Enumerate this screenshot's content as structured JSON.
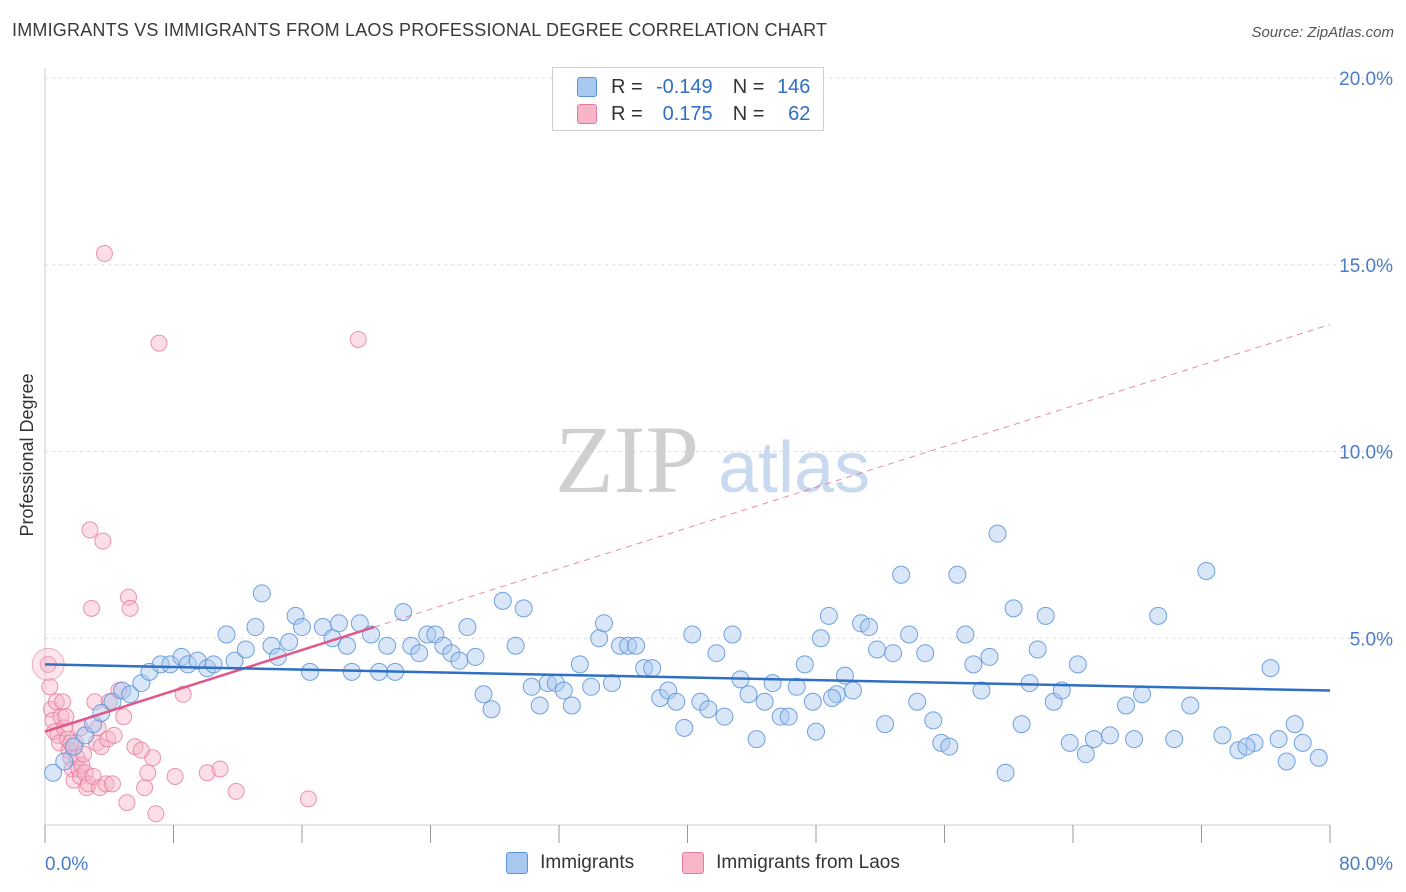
{
  "title": "IMMIGRANTS VS IMMIGRANTS FROM LAOS PROFESSIONAL DEGREE CORRELATION CHART",
  "source": "Source: ZipAtlas.com",
  "watermark": {
    "zip": "ZIP",
    "atlas": "atlas"
  },
  "legend_top": {
    "rows": [
      {
        "r_label": "R =",
        "r_value": "-0.149",
        "n_label": "N =",
        "n_value": "146",
        "color": "#a9c8f0"
      },
      {
        "r_label": "R =",
        "r_value": "0.175",
        "n_label": "N =",
        "n_value": "62",
        "color": "#f7b6c8"
      }
    ]
  },
  "legend_bottom": [
    {
      "label": "Immigrants",
      "color": "#a9c8f0"
    },
    {
      "label": "Immigrants from Laos",
      "color": "#f7b6c8"
    }
  ],
  "colors": {
    "blue_fill": "#a9c8f0",
    "blue_stroke": "#5b93d8",
    "blue_line": "#2f6fc4",
    "pink_fill": "#f7b6c8",
    "pink_stroke": "#e57aa0",
    "pink_line": "#e0588a",
    "axis_text": "#4a7cc8",
    "grid": "#dddddd"
  },
  "chart_data": {
    "type": "scatter",
    "title": "IMMIGRANTS VS IMMIGRANTS FROM LAOS PROFESSIONAL DEGREE CORRELATION CHART",
    "xlabel": "",
    "ylabel": "Professional Degree",
    "xlim": [
      0,
      80
    ],
    "ylim": [
      0,
      20
    ],
    "x_tick_labels": [
      "0.0%",
      "80.0%"
    ],
    "y_ticks": [
      5,
      10,
      15,
      20
    ],
    "y_tick_labels": [
      "5.0%",
      "10.0%",
      "15.0%",
      "20.0%"
    ],
    "grid": true,
    "series": [
      {
        "name": "Immigrants",
        "r": -0.149,
        "n": 146,
        "trend": {
          "x": [
            0,
            80
          ],
          "y": [
            4.3,
            3.6
          ]
        },
        "points": [
          [
            0.5,
            1.4
          ],
          [
            1.2,
            1.7
          ],
          [
            1.8,
            2.1
          ],
          [
            2.5,
            2.4
          ],
          [
            3.0,
            2.7
          ],
          [
            3.5,
            3.0
          ],
          [
            4.2,
            3.3
          ],
          [
            4.8,
            3.6
          ],
          [
            5.3,
            3.5
          ],
          [
            6.0,
            3.8
          ],
          [
            6.5,
            4.1
          ],
          [
            7.2,
            4.3
          ],
          [
            7.8,
            4.3
          ],
          [
            8.5,
            4.5
          ],
          [
            8.9,
            4.3
          ],
          [
            9.5,
            4.4
          ],
          [
            10.1,
            4.2
          ],
          [
            10.5,
            4.3
          ],
          [
            11.3,
            5.1
          ],
          [
            11.8,
            4.4
          ],
          [
            12.5,
            4.7
          ],
          [
            13.1,
            5.3
          ],
          [
            13.5,
            6.2
          ],
          [
            14.1,
            4.8
          ],
          [
            14.5,
            4.5
          ],
          [
            15.2,
            4.9
          ],
          [
            15.6,
            5.6
          ],
          [
            16.0,
            5.3
          ],
          [
            16.5,
            4.1
          ],
          [
            17.3,
            5.3
          ],
          [
            17.9,
            5.0
          ],
          [
            18.3,
            5.4
          ],
          [
            18.8,
            4.8
          ],
          [
            19.1,
            4.1
          ],
          [
            19.6,
            5.4
          ],
          [
            20.3,
            5.1
          ],
          [
            20.8,
            4.1
          ],
          [
            21.3,
            4.8
          ],
          [
            21.8,
            4.1
          ],
          [
            22.3,
            5.7
          ],
          [
            22.8,
            4.8
          ],
          [
            23.3,
            4.6
          ],
          [
            23.8,
            5.1
          ],
          [
            24.3,
            5.1
          ],
          [
            24.8,
            4.8
          ],
          [
            25.3,
            4.6
          ],
          [
            25.8,
            4.4
          ],
          [
            26.3,
            5.3
          ],
          [
            26.8,
            4.5
          ],
          [
            27.3,
            3.5
          ],
          [
            27.8,
            3.1
          ],
          [
            28.5,
            6.0
          ],
          [
            29.3,
            4.8
          ],
          [
            29.8,
            5.8
          ],
          [
            30.3,
            3.7
          ],
          [
            30.8,
            3.2
          ],
          [
            31.3,
            3.8
          ],
          [
            31.8,
            3.8
          ],
          [
            32.3,
            3.6
          ],
          [
            32.8,
            3.2
          ],
          [
            33.3,
            4.3
          ],
          [
            34.0,
            3.7
          ],
          [
            34.5,
            5.0
          ],
          [
            34.8,
            5.4
          ],
          [
            35.3,
            3.8
          ],
          [
            35.8,
            4.8
          ],
          [
            36.3,
            4.8
          ],
          [
            36.8,
            4.8
          ],
          [
            37.3,
            4.2
          ],
          [
            37.8,
            4.2
          ],
          [
            38.3,
            3.4
          ],
          [
            38.8,
            3.6
          ],
          [
            39.3,
            3.3
          ],
          [
            39.8,
            2.6
          ],
          [
            40.3,
            5.1
          ],
          [
            40.8,
            3.3
          ],
          [
            41.3,
            3.1
          ],
          [
            41.8,
            4.6
          ],
          [
            42.3,
            2.9
          ],
          [
            42.8,
            5.1
          ],
          [
            43.3,
            3.9
          ],
          [
            43.8,
            3.5
          ],
          [
            44.3,
            2.3
          ],
          [
            44.8,
            3.3
          ],
          [
            45.3,
            3.8
          ],
          [
            45.8,
            2.9
          ],
          [
            46.3,
            2.9
          ],
          [
            46.8,
            3.7
          ],
          [
            47.3,
            4.3
          ],
          [
            47.8,
            3.3
          ],
          [
            48.3,
            5.0
          ],
          [
            48.8,
            5.6
          ],
          [
            49.3,
            3.5
          ],
          [
            49.8,
            4.0
          ],
          [
            50.3,
            3.6
          ],
          [
            50.8,
            5.4
          ],
          [
            51.3,
            5.3
          ],
          [
            51.8,
            4.7
          ],
          [
            52.3,
            2.7
          ],
          [
            52.8,
            4.6
          ],
          [
            53.3,
            6.7
          ],
          [
            53.8,
            5.1
          ],
          [
            54.3,
            3.3
          ],
          [
            54.8,
            4.6
          ],
          [
            55.3,
            2.8
          ],
          [
            55.8,
            2.2
          ],
          [
            56.3,
            2.1
          ],
          [
            56.8,
            6.7
          ],
          [
            57.3,
            5.1
          ],
          [
            57.8,
            4.3
          ],
          [
            58.3,
            3.6
          ],
          [
            58.8,
            4.5
          ],
          [
            59.3,
            7.8
          ],
          [
            59.8,
            1.4
          ],
          [
            60.3,
            5.8
          ],
          [
            60.8,
            2.7
          ],
          [
            61.3,
            3.8
          ],
          [
            61.8,
            4.7
          ],
          [
            62.3,
            5.6
          ],
          [
            62.8,
            3.3
          ],
          [
            63.3,
            3.6
          ],
          [
            63.8,
            2.2
          ],
          [
            64.3,
            4.3
          ],
          [
            64.8,
            1.9
          ],
          [
            65.3,
            2.3
          ],
          [
            66.3,
            2.4
          ],
          [
            67.3,
            3.2
          ],
          [
            68.3,
            3.5
          ],
          [
            69.3,
            5.6
          ],
          [
            70.3,
            2.3
          ],
          [
            71.3,
            3.2
          ],
          [
            72.3,
            6.8
          ],
          [
            73.3,
            2.4
          ],
          [
            74.3,
            2.0
          ],
          [
            75.3,
            2.2
          ],
          [
            76.3,
            4.2
          ],
          [
            77.3,
            1.7
          ],
          [
            78.3,
            2.2
          ],
          [
            79.3,
            1.8
          ],
          [
            74.8,
            2.1
          ],
          [
            76.8,
            2.3
          ],
          [
            77.8,
            2.7
          ],
          [
            49.0,
            3.4
          ],
          [
            48.0,
            2.5
          ],
          [
            67.8,
            2.3
          ]
        ]
      },
      {
        "name": "Immigrants from Laos",
        "r": 0.175,
        "n": 62,
        "trend": {
          "x": [
            0,
            20.5
          ],
          "y": [
            2.5,
            5.3
          ]
        },
        "trend_extended": {
          "x": [
            20.5,
            80
          ],
          "y": [
            5.3,
            13.4
          ]
        },
        "points": [
          [
            0.2,
            4.3
          ],
          [
            0.3,
            3.7
          ],
          [
            0.4,
            3.1
          ],
          [
            0.5,
            2.8
          ],
          [
            0.6,
            2.5
          ],
          [
            0.7,
            3.3
          ],
          [
            0.8,
            2.4
          ],
          [
            0.9,
            2.2
          ],
          [
            1.0,
            2.9
          ],
          [
            1.1,
            3.3
          ],
          [
            1.2,
            2.6
          ],
          [
            1.3,
            2.9
          ],
          [
            1.4,
            2.3
          ],
          [
            1.5,
            2.0
          ],
          [
            1.6,
            1.8
          ],
          [
            1.7,
            1.5
          ],
          [
            1.8,
            1.2
          ],
          [
            1.9,
            2.2
          ],
          [
            2.0,
            1.8
          ],
          [
            2.1,
            1.5
          ],
          [
            2.2,
            1.3
          ],
          [
            2.3,
            1.6
          ],
          [
            2.4,
            1.9
          ],
          [
            2.5,
            1.4
          ],
          [
            2.6,
            1.0
          ],
          [
            2.7,
            1.1
          ],
          [
            2.8,
            7.9
          ],
          [
            2.9,
            5.8
          ],
          [
            3.0,
            1.3
          ],
          [
            3.1,
            3.3
          ],
          [
            3.2,
            2.2
          ],
          [
            3.3,
            2.6
          ],
          [
            3.4,
            1.0
          ],
          [
            3.5,
            2.1
          ],
          [
            3.6,
            7.6
          ],
          [
            3.7,
            15.3
          ],
          [
            3.8,
            1.1
          ],
          [
            3.9,
            2.3
          ],
          [
            4.0,
            3.3
          ],
          [
            4.3,
            2.4
          ],
          [
            4.6,
            3.6
          ],
          [
            4.9,
            2.9
          ],
          [
            5.1,
            0.6
          ],
          [
            5.2,
            6.1
          ],
          [
            5.3,
            5.8
          ],
          [
            5.6,
            2.1
          ],
          [
            6.2,
            1.0
          ],
          [
            6.4,
            1.4
          ],
          [
            6.7,
            1.8
          ],
          [
            6.9,
            0.3
          ],
          [
            7.1,
            12.9
          ],
          [
            8.1,
            1.3
          ],
          [
            8.6,
            3.5
          ],
          [
            10.1,
            1.4
          ],
          [
            10.9,
            1.5
          ],
          [
            11.9,
            0.9
          ],
          [
            16.4,
            0.7
          ],
          [
            19.5,
            13.0
          ],
          [
            4.2,
            1.1
          ],
          [
            6.0,
            2.0
          ],
          [
            2.2,
            2.6
          ],
          [
            1.6,
            2.2
          ]
        ]
      }
    ]
  }
}
